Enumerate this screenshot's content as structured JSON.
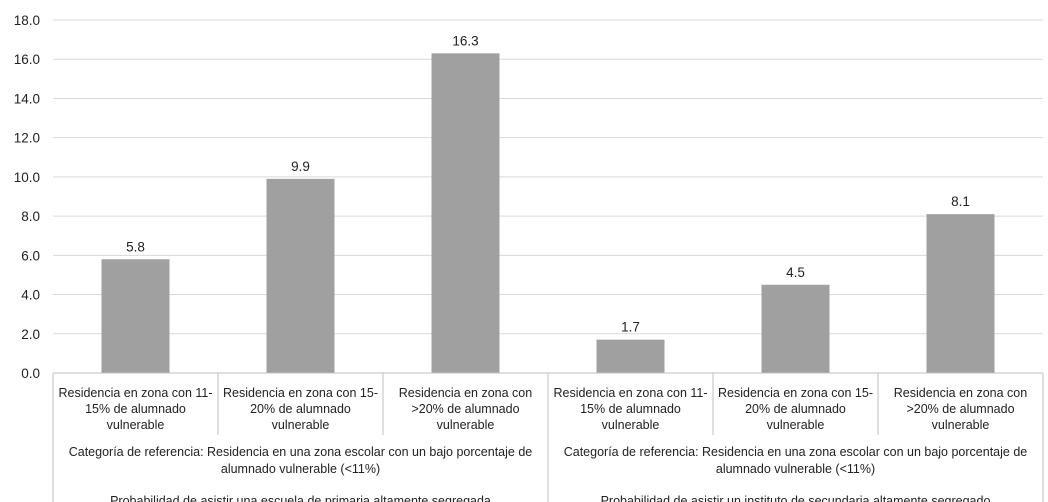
{
  "chart_data": {
    "type": "bar",
    "title": "",
    "xlabel": "",
    "ylabel": "",
    "ylim": [
      0,
      18
    ],
    "ytick_step": 2,
    "ytick_labels": [
      "0.0",
      "2.0",
      "4.0",
      "6.0",
      "8.0",
      "10.0",
      "12.0",
      "14.0",
      "16.0",
      "18.0"
    ],
    "grid": true,
    "bar_color": "#a0a0a0",
    "categories": [
      [
        "Residencia en zona con 11-",
        "15% de alumnado",
        "vulnerable"
      ],
      [
        "Residencia en zona con 15-",
        "20% de alumnado",
        "vulnerable"
      ],
      [
        "Residencia en zona con",
        ">20% de alumnado",
        "vulnerable"
      ],
      [
        "Residencia en zona con 11-",
        "15% de alumnado",
        "vulnerable"
      ],
      [
        "Residencia en zona con 15-",
        "20% de alumnado",
        "vulnerable"
      ],
      [
        "Residencia en zona con",
        ">20% de alumnado",
        "vulnerable"
      ]
    ],
    "values": [
      5.8,
      9.9,
      16.3,
      1.7,
      4.5,
      8.1
    ],
    "value_labels": [
      "5.8",
      "9.9",
      "16.3",
      "1.7",
      "4.5",
      "8.1"
    ],
    "reference_labels": [
      [
        "Categoría de referencia: Residencia en una zona escolar con un bajo porcentaje de",
        "alumnado vulnerable (<11%)"
      ],
      [
        "Categoría de referencia: Residencia en una zona escolar con un bajo porcentaje de",
        "alumnado vulnerable (<11%)"
      ]
    ],
    "group_labels": [
      "Probabilidad de asistir una escuela de primaria altamente segregada",
      "Probabilidad de asistir un instituto de secundaria altamente segregado"
    ]
  }
}
